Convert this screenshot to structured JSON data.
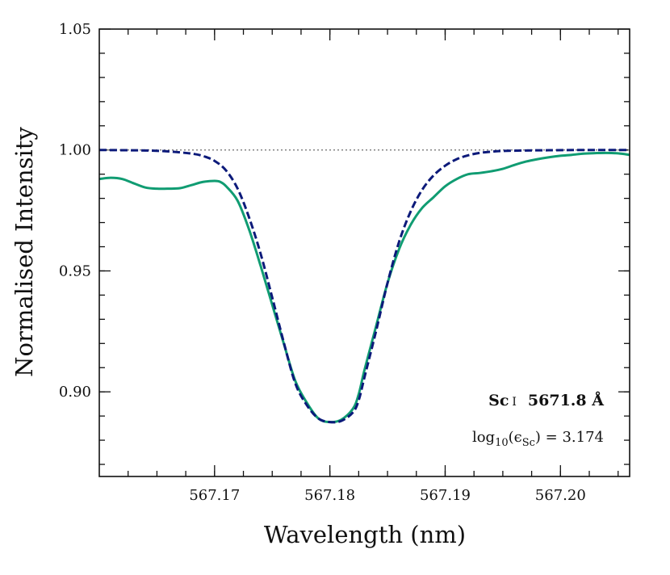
{
  "chart_data": {
    "type": "line",
    "title": "",
    "xlabel": "Wavelength (nm)",
    "ylabel": "Normalised Intensity",
    "xlim": [
      567.16,
      567.206
    ],
    "ylim": [
      0.865,
      1.05
    ],
    "x_ticks": [
      567.17,
      567.18,
      567.19,
      567.2
    ],
    "x_tick_labels": [
      "567.17",
      "567.18",
      "567.19",
      "567.20"
    ],
    "y_ticks": [
      0.9,
      0.95,
      1.0,
      1.05
    ],
    "y_tick_labels": [
      "0.90",
      "0.95",
      "1.00",
      "1.05"
    ],
    "x_minor_step": 0.0025,
    "y_minor_step": 0.01,
    "grid": false,
    "legend": "none",
    "reference_line": {
      "y": 1.0,
      "style": "dotted",
      "color": "#888888"
    },
    "annotation": {
      "element": "Sc",
      "ion": "I",
      "wavelength": "5671.8 Å",
      "abundance_prefix": "log",
      "abundance_base": "10",
      "abundance_open": "(ϵ",
      "abundance_species": "Sc",
      "abundance_suffix": ") = 3.174"
    },
    "series": [
      {
        "style": "solid",
        "color": "#109c72",
        "x": [
          567.16,
          567.161,
          567.162,
          567.163,
          567.164,
          567.165,
          567.166,
          567.167,
          567.168,
          567.169,
          567.17,
          567.1705,
          567.171,
          567.172,
          567.173,
          567.174,
          567.175,
          567.176,
          567.177,
          567.178,
          567.179,
          567.18,
          567.181,
          567.182,
          567.1825,
          567.183,
          567.184,
          567.185,
          567.186,
          567.187,
          567.188,
          567.189,
          567.19,
          567.191,
          567.192,
          567.193,
          567.194,
          567.195,
          567.196,
          567.197,
          567.198,
          567.199,
          567.2,
          567.201,
          567.202,
          567.203,
          567.204,
          567.205,
          567.206
        ],
        "y": [
          0.988,
          0.9885,
          0.988,
          0.9862,
          0.9845,
          0.984,
          0.984,
          0.9842,
          0.9855,
          0.9868,
          0.9872,
          0.9868,
          0.985,
          0.979,
          0.967,
          0.952,
          0.936,
          0.92,
          0.9045,
          0.8955,
          0.889,
          0.8875,
          0.8885,
          0.893,
          0.899,
          0.909,
          0.927,
          0.945,
          0.959,
          0.969,
          0.976,
          0.9805,
          0.985,
          0.988,
          0.99,
          0.9905,
          0.9912,
          0.9922,
          0.9938,
          0.9952,
          0.9962,
          0.997,
          0.9976,
          0.998,
          0.9985,
          0.9987,
          0.9988,
          0.9986,
          0.998
        ]
      },
      {
        "style": "dashed",
        "color": "#0c1a7a",
        "x": [
          567.16,
          567.164,
          567.166,
          567.168,
          567.169,
          567.17,
          567.171,
          567.172,
          567.173,
          567.174,
          567.175,
          567.176,
          567.177,
          567.178,
          567.179,
          567.18,
          567.181,
          567.182,
          567.1825,
          567.183,
          567.184,
          567.185,
          567.186,
          567.187,
          567.188,
          567.189,
          567.19,
          567.191,
          567.192,
          567.193,
          567.194,
          567.195,
          567.197,
          567.199,
          567.202,
          567.206
        ],
        "y": [
          1.0,
          0.9998,
          0.9994,
          0.9985,
          0.9975,
          0.9955,
          0.9915,
          0.984,
          0.972,
          0.957,
          0.939,
          0.9205,
          0.9035,
          0.8945,
          0.889,
          0.8875,
          0.888,
          0.8915,
          0.8965,
          0.906,
          0.925,
          0.945,
          0.962,
          0.9745,
          0.9835,
          0.9895,
          0.9935,
          0.9962,
          0.9978,
          0.9988,
          0.9993,
          0.9996,
          0.9998,
          0.9999,
          1.0,
          1.0
        ]
      }
    ]
  }
}
